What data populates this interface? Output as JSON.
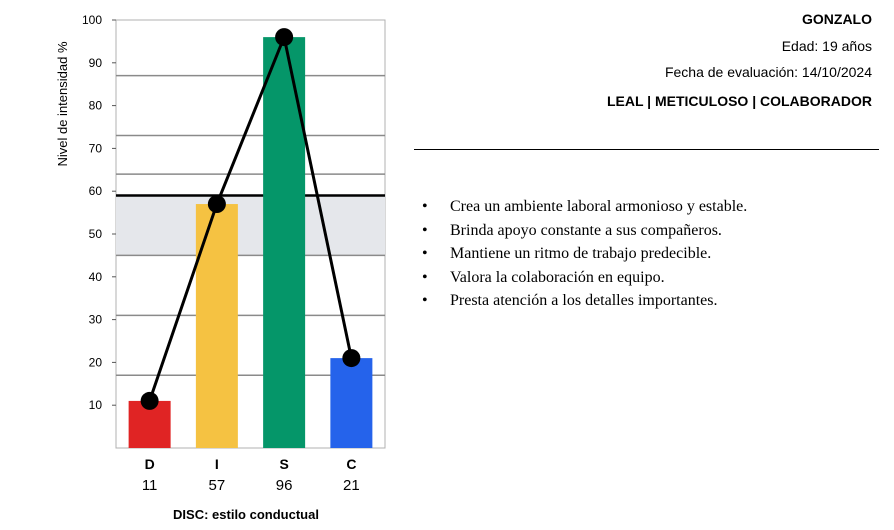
{
  "chart_data": {
    "type": "bar",
    "title": "DISC: estilo conductual",
    "ylabel": "Nivel de intensidad %",
    "ylim": [
      0,
      100
    ],
    "yticks": [
      10,
      20,
      30,
      40,
      50,
      60,
      70,
      80,
      90,
      100
    ],
    "categories": [
      "D",
      "I",
      "S",
      "C"
    ],
    "values": [
      11,
      57,
      96,
      21
    ],
    "colors": [
      "#e02424",
      "#f5c242",
      "#059669",
      "#2563eb"
    ],
    "band": [
      45,
      59
    ],
    "highlight_line": 59,
    "gridlines": [
      17,
      31,
      45,
      64,
      73,
      87
    ],
    "overlay": "line-with-markers"
  },
  "profile": {
    "name": "GONZALO",
    "age": "Edad: 19 años",
    "date": "Fecha de evaluación: 14/10/2024",
    "traits": "LEAL | METICULOSO | COLABORADOR"
  },
  "bullets": [
    "Crea un ambiente laboral armonioso y estable.",
    "Brinda apoyo constante a sus compañeros.",
    "Mantiene un ritmo de trabajo predecible.",
    "Valora la colaboración en equipo.",
    "Presta atención a los detalles importantes."
  ]
}
